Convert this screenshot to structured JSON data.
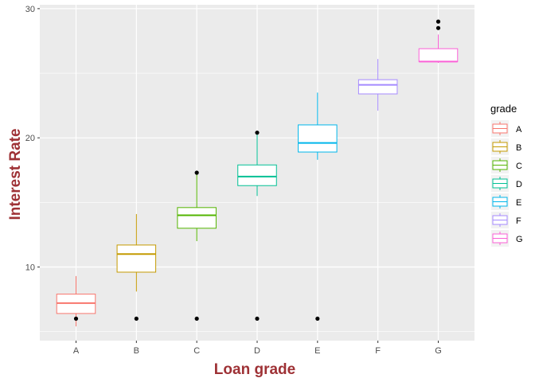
{
  "chart_data": {
    "type": "boxplot",
    "xlabel": "Loan grade",
    "ylabel": "Interest Rate",
    "ylim": [
      4.3,
      30.3
    ],
    "yticks": [
      10,
      20,
      30
    ],
    "grid": true,
    "legend": {
      "title": "grade",
      "placement": "right"
    },
    "categories": [
      "A",
      "B",
      "C",
      "D",
      "E",
      "F",
      "G"
    ],
    "colors": [
      "#F8766D",
      "#C49A00",
      "#53B400",
      "#00C094",
      "#00B6EB",
      "#A58AFF",
      "#FB61D7"
    ],
    "series": [
      {
        "name": "A",
        "whisker_low": 5.4,
        "q1": 6.4,
        "median": 7.2,
        "q3": 7.9,
        "whisker_high": 9.3,
        "outliers": [
          6.0
        ]
      },
      {
        "name": "B",
        "whisker_low": 8.1,
        "q1": 9.6,
        "median": 11.0,
        "q3": 11.7,
        "whisker_high": 14.1,
        "outliers": [
          6.0
        ]
      },
      {
        "name": "C",
        "whisker_low": 12.0,
        "q1": 13.0,
        "median": 14.0,
        "q3": 14.6,
        "whisker_high": 17.2,
        "outliers": [
          6.0,
          17.3
        ]
      },
      {
        "name": "D",
        "whisker_low": 15.5,
        "q1": 16.3,
        "median": 17.0,
        "q3": 17.9,
        "whisker_high": 20.3,
        "outliers": [
          6.0,
          20.4
        ]
      },
      {
        "name": "E",
        "whisker_low": 18.3,
        "q1": 18.9,
        "median": 19.6,
        "q3": 21.0,
        "whisker_high": 23.5,
        "outliers": [
          6.0
        ]
      },
      {
        "name": "F",
        "whisker_low": 22.1,
        "q1": 23.4,
        "median": 24.1,
        "q3": 24.5,
        "whisker_high": 26.1,
        "outliers": []
      },
      {
        "name": "G",
        "whisker_low": 25.8,
        "q1": 25.9,
        "median": 25.9,
        "q3": 26.9,
        "whisker_high": 28.0,
        "outliers": [
          28.5,
          29.0
        ]
      }
    ]
  }
}
